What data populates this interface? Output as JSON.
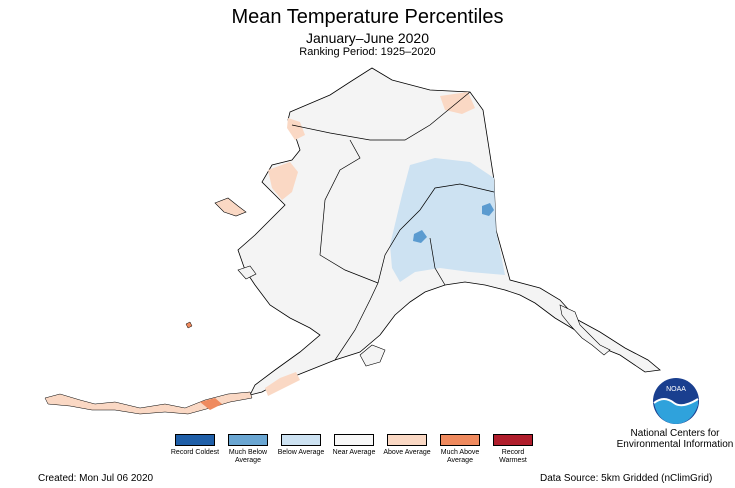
{
  "title": "Mean Temperature Percentiles",
  "subtitle": "January–June 2020",
  "ranking_period": "Ranking Period: 1925–2020",
  "legend": [
    {
      "label": "Record Coldest",
      "color": "#1f5fa8"
    },
    {
      "label": "Much Below Average",
      "color": "#6aa6d2"
    },
    {
      "label": "Below Average",
      "color": "#cde2f2"
    },
    {
      "label": "Near Average",
      "color": "#f7f7f7"
    },
    {
      "label": "Above Average",
      "color": "#fad8c4"
    },
    {
      "label": "Much Above Average",
      "color": "#ef8a5e"
    },
    {
      "label": "Record Warmest",
      "color": "#b01e2c"
    }
  ],
  "footer": {
    "created": "Created: Mon Jul 06 2020",
    "source": "Data Source: 5km Gridded (nClimGrid)"
  },
  "logo": {
    "text": "NOAA",
    "org": "National Centers for Environmental Information",
    "colors": {
      "sky": "#1a3f8f",
      "wave": "#2fa2dc"
    }
  },
  "map": {
    "region": "Alaska",
    "colors": {
      "near": "#f4f4f4",
      "below": "#cde2f2",
      "much_below": "#5b9bd0",
      "above": "#fad8c4",
      "much_above": "#ef8a5e"
    }
  }
}
